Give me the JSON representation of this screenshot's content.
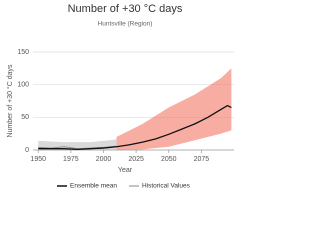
{
  "chart_data": {
    "type": "line",
    "title": "Number of +30 °C days",
    "subtitle": "Huntsville (Region)",
    "x_label": "Year",
    "y_label": "Number of +30 °C days",
    "x": [
      1950,
      1960,
      1970,
      1980,
      1990,
      2000,
      2010,
      2020,
      2030,
      2040,
      2050,
      2060,
      2070,
      2080,
      2090,
      2095,
      2098
    ],
    "series": [
      {
        "name": "Ensemble mean",
        "color": "#111111",
        "values": [
          2,
          2,
          2,
          1,
          2,
          3,
          5,
          8,
          12,
          17,
          24,
          32,
          40,
          50,
          62,
          68,
          65
        ]
      },
      {
        "name": "Historical Values",
        "color": "#888888",
        "values": [
          4,
          3,
          5,
          2,
          3,
          4,
          6,
          null,
          null,
          null,
          null,
          null,
          null,
          null,
          null,
          null,
          null
        ]
      }
    ],
    "bands": [
      {
        "color": "#bbbbbb",
        "x": [
          1950,
          1970,
          1990,
          2010
        ],
        "low": [
          0,
          0,
          0,
          0
        ],
        "high": [
          14,
          12,
          12,
          16
        ]
      },
      {
        "color": "#f26a55",
        "x": [
          2010,
          2030,
          2050,
          2070,
          2090,
          2098
        ],
        "low": [
          0,
          1,
          5,
          15,
          25,
          30
        ],
        "high": [
          20,
          40,
          65,
          85,
          110,
          125
        ]
      }
    ],
    "xlim": [
      1946,
      2100
    ],
    "xticks": [
      1950,
      1975,
      2000,
      2025,
      2050,
      2075
    ],
    "ylim": [
      0,
      150
    ],
    "yticks": [
      0,
      50,
      100,
      150
    ],
    "grid": true
  }
}
